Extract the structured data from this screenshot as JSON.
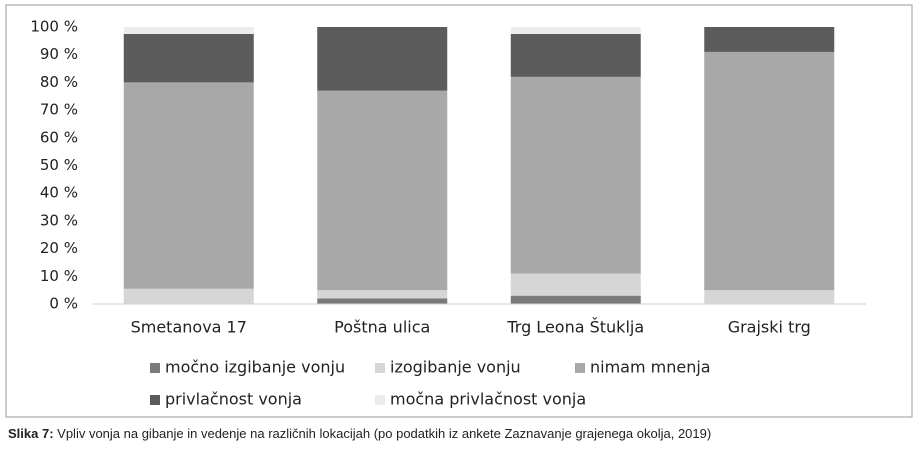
{
  "chart_data": {
    "type": "stacked_bar",
    "categories": [
      "Smetanova 17",
      "Poštna ulica",
      "Trg Leona Štuklja",
      "Grajski trg"
    ],
    "series": [
      {
        "name": "močno izgibanje vonju",
        "color": "#7a7a7a",
        "values": [
          0,
          2,
          3,
          0
        ]
      },
      {
        "name": "izogibanje vonju",
        "color": "#d6d6d6",
        "values": [
          5.5,
          3,
          8,
          5
        ]
      },
      {
        "name": "nimam mnenja",
        "color": "#a8a8a8",
        "values": [
          74.5,
          72,
          71,
          86
        ]
      },
      {
        "name": "privlačnost vonja",
        "color": "#5c5c5c",
        "values": [
          17.5,
          23,
          15.5,
          9
        ]
      },
      {
        "name": "močna privlačnost vonja",
        "color": "#ececec",
        "values": [
          2.5,
          0,
          2.5,
          0
        ]
      }
    ],
    "ylim": [
      0,
      100
    ],
    "yticks": [
      {
        "value": 0,
        "label": "0 %"
      },
      {
        "value": 10,
        "label": "10 %"
      },
      {
        "value": 20,
        "label": "20 %"
      },
      {
        "value": 30,
        "label": "30 %"
      },
      {
        "value": 40,
        "label": "40 %"
      },
      {
        "value": 50,
        "label": "50 %"
      },
      {
        "value": 60,
        "label": "60 %"
      },
      {
        "value": 70,
        "label": "70 %"
      },
      {
        "value": 80,
        "label": "80 %"
      },
      {
        "value": 90,
        "label": "90 %"
      },
      {
        "value": 100,
        "label": "100 %"
      }
    ],
    "grid": false
  },
  "caption": {
    "label": "Slika 7:",
    "text": "Vpliv vonja na gibanje in vedenje na različnih lokacijah (po podatkih iz ankete Zaznavanje grajenega okolja, 2019)"
  }
}
